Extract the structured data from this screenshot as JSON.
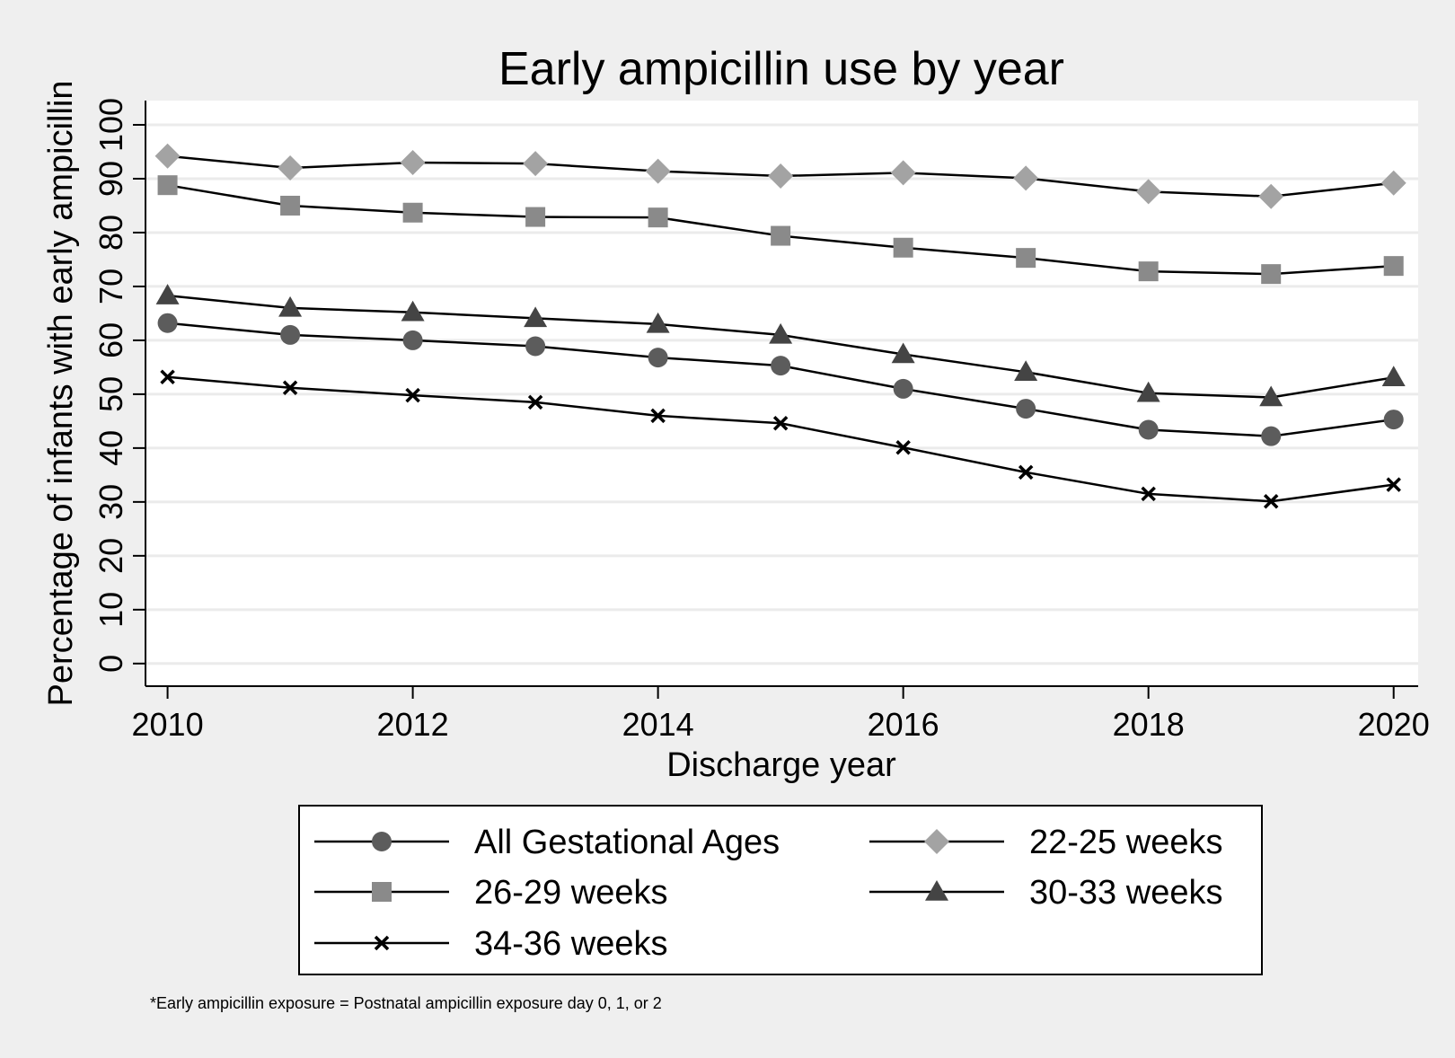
{
  "chart_data": {
    "type": "line",
    "title": "Early ampicillin use by year",
    "xlabel": "Discharge year",
    "ylabel": "Percentage of infants with early ampicillin",
    "x": [
      2010,
      2011,
      2012,
      2013,
      2014,
      2015,
      2016,
      2017,
      2018,
      2019,
      2020
    ],
    "xticks": [
      2010,
      2012,
      2014,
      2016,
      2018,
      2020
    ],
    "yticks": [
      0,
      10,
      20,
      30,
      40,
      50,
      60,
      70,
      80,
      90,
      100
    ],
    "xlim": [
      2009.82,
      2020.2
    ],
    "ylim": [
      -4.2,
      104.5
    ],
    "grid": true,
    "legend_position": "bottom",
    "series": [
      {
        "name": "All Gestational Ages",
        "marker": "circle",
        "color": "#5c5c5c",
        "values": [
          63.2,
          61.0,
          60.0,
          58.9,
          56.8,
          55.3,
          51.0,
          47.3,
          43.4,
          42.2,
          45.3
        ]
      },
      {
        "name": "22-25 weeks",
        "marker": "diamond",
        "color": "#a3a3a3",
        "values": [
          94.2,
          92.0,
          93.0,
          92.8,
          91.4,
          90.5,
          91.1,
          90.1,
          87.6,
          86.7,
          89.2
        ]
      },
      {
        "name": "26-29 weeks",
        "marker": "square",
        "color": "#8a8a8a",
        "values": [
          88.8,
          85.0,
          83.7,
          82.9,
          82.8,
          79.4,
          77.2,
          75.3,
          72.8,
          72.3,
          73.8
        ]
      },
      {
        "name": "30-33 weeks",
        "marker": "triangle",
        "color": "#444444",
        "values": [
          68.3,
          66.0,
          65.2,
          64.1,
          63.0,
          61.0,
          57.4,
          54.1,
          50.2,
          49.4,
          53.1
        ]
      },
      {
        "name": "34-36 weeks",
        "marker": "x",
        "color": "#000000",
        "values": [
          53.2,
          51.2,
          49.8,
          48.5,
          46.0,
          44.6,
          40.1,
          35.5,
          31.5,
          30.1,
          33.2
        ]
      }
    ],
    "footnote": "*Early ampicillin exposure = Postnatal ampicillin exposure day 0, 1, or 2"
  }
}
